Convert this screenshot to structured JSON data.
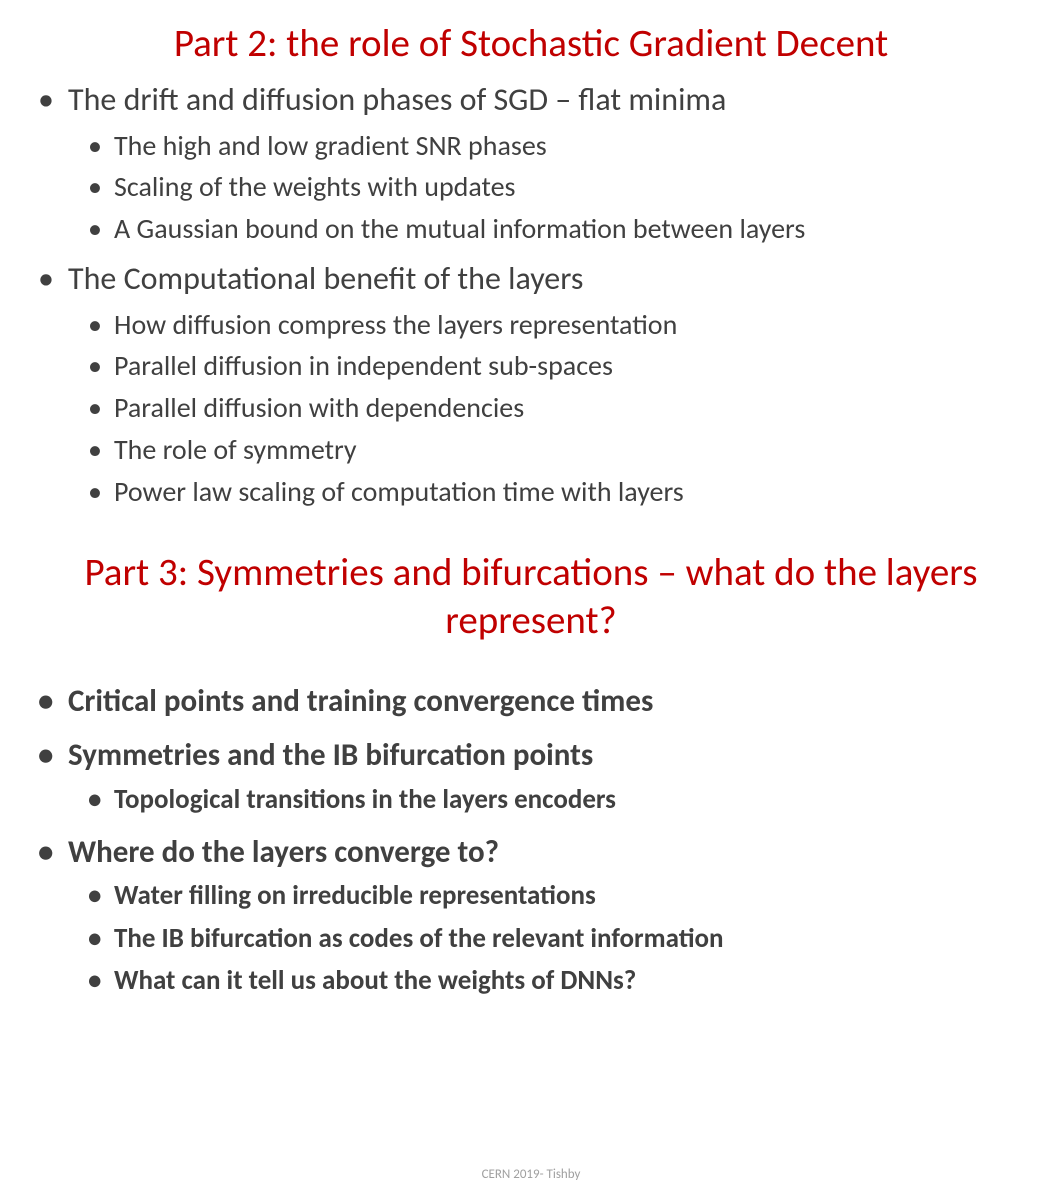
{
  "part2": {
    "title": "Part 2: the role of Stochastic Gradient Decent",
    "items": [
      {
        "text": "The drift and diffusion phases of SGD – flat minima",
        "sub": [
          "The high and low gradient SNR phases",
          "Scaling of the weights with updates",
          "A Gaussian bound on the mutual information between layers"
        ]
      },
      {
        "text": "The Computational benefit of the layers",
        "sub": [
          "How diffusion compress the layers representation",
          "Parallel diffusion in independent sub-spaces",
          "Parallel diffusion with dependencies",
          "The role of symmetry",
          "Power law scaling of computation time with layers"
        ]
      }
    ]
  },
  "part3": {
    "title": "Part 3: Symmetries and bifurcations – what do the layers represent?",
    "items": [
      {
        "text": "Critical points and training convergence times",
        "sub": []
      },
      {
        "text": "Symmetries and the IB bifurcation points",
        "sub": [
          "Topological transitions in the layers encoders"
        ]
      },
      {
        "text": "Where do the layers converge to?",
        "sub": [
          "Water filling on irreducible representations",
          "The IB bifurcation as codes of the relevant information",
          "What can it tell us about the weights of DNNs?"
        ]
      }
    ]
  },
  "footer": "CERN 2019-  Tishby",
  "colors": {
    "title": "#c00000",
    "body_text": "#404040",
    "background": "#ffffff",
    "footer": "#a0a0a0"
  },
  "fonts": {
    "family": "Calibri",
    "title_size_pt": 29,
    "level1_size_pt": 24,
    "level2_size_pt": 21
  }
}
